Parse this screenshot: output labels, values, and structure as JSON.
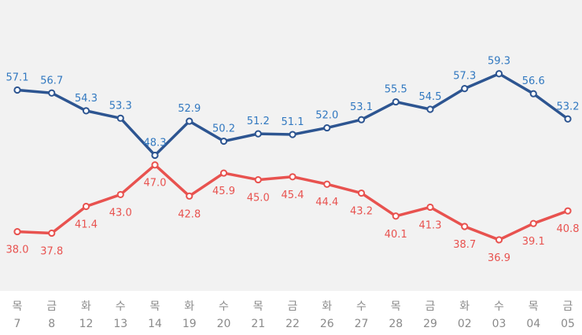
{
  "chart_data": {
    "type": "line",
    "title": "",
    "xlabel": "",
    "ylabel": "",
    "ylim": [
      30,
      65
    ],
    "grid": false,
    "legend": "none",
    "categories": [
      {
        "day": "목",
        "date": "7"
      },
      {
        "day": "금",
        "date": "8"
      },
      {
        "day": "화",
        "date": "12"
      },
      {
        "day": "수",
        "date": "13"
      },
      {
        "day": "목",
        "date": "14"
      },
      {
        "day": "화",
        "date": "19"
      },
      {
        "day": "수",
        "date": "20"
      },
      {
        "day": "목",
        "date": "21"
      },
      {
        "day": "금",
        "date": "22"
      },
      {
        "day": "화",
        "date": "26"
      },
      {
        "day": "수",
        "date": "27"
      },
      {
        "day": "목",
        "date": "28"
      },
      {
        "day": "금",
        "date": "29"
      },
      {
        "day": "화",
        "date": "02"
      },
      {
        "day": "수",
        "date": "03"
      },
      {
        "day": "목",
        "date": "04"
      },
      {
        "day": "금",
        "date": "05"
      }
    ],
    "series": [
      {
        "color": "#2d5591",
        "label_color": "#3178c0",
        "values": [
          57.1,
          56.7,
          54.3,
          53.3,
          48.3,
          52.9,
          50.2,
          51.2,
          51.1,
          52.0,
          53.1,
          55.5,
          54.5,
          57.3,
          59.3,
          56.6,
          53.2
        ],
        "labels": [
          "57.1",
          "56.7",
          "54.3",
          "53.3",
          "48.3",
          "52.9",
          "50.2",
          "51.2",
          "51.1",
          "52.0",
          "53.1",
          "55.5",
          "54.5",
          "57.3",
          "59.3",
          "56.6",
          "53.2"
        ]
      },
      {
        "color": "#e8524f",
        "label_color": "#e8524f",
        "values": [
          38.0,
          37.8,
          41.4,
          43.0,
          47.0,
          42.8,
          45.9,
          45.0,
          45.4,
          44.4,
          43.2,
          40.1,
          41.3,
          38.7,
          36.9,
          39.1,
          40.8
        ],
        "labels": [
          "38.0",
          "37.8",
          "41.4",
          "43.0",
          "47.0",
          "42.8",
          "45.9",
          "45.0",
          "45.4",
          "44.4",
          "43.2",
          "40.1",
          "41.3",
          "38.7",
          "36.9",
          "39.1",
          "40.8"
        ]
      }
    ]
  },
  "colors": {
    "plot_background": "#f2f2f2",
    "tick_text": "#8a8a8a"
  }
}
